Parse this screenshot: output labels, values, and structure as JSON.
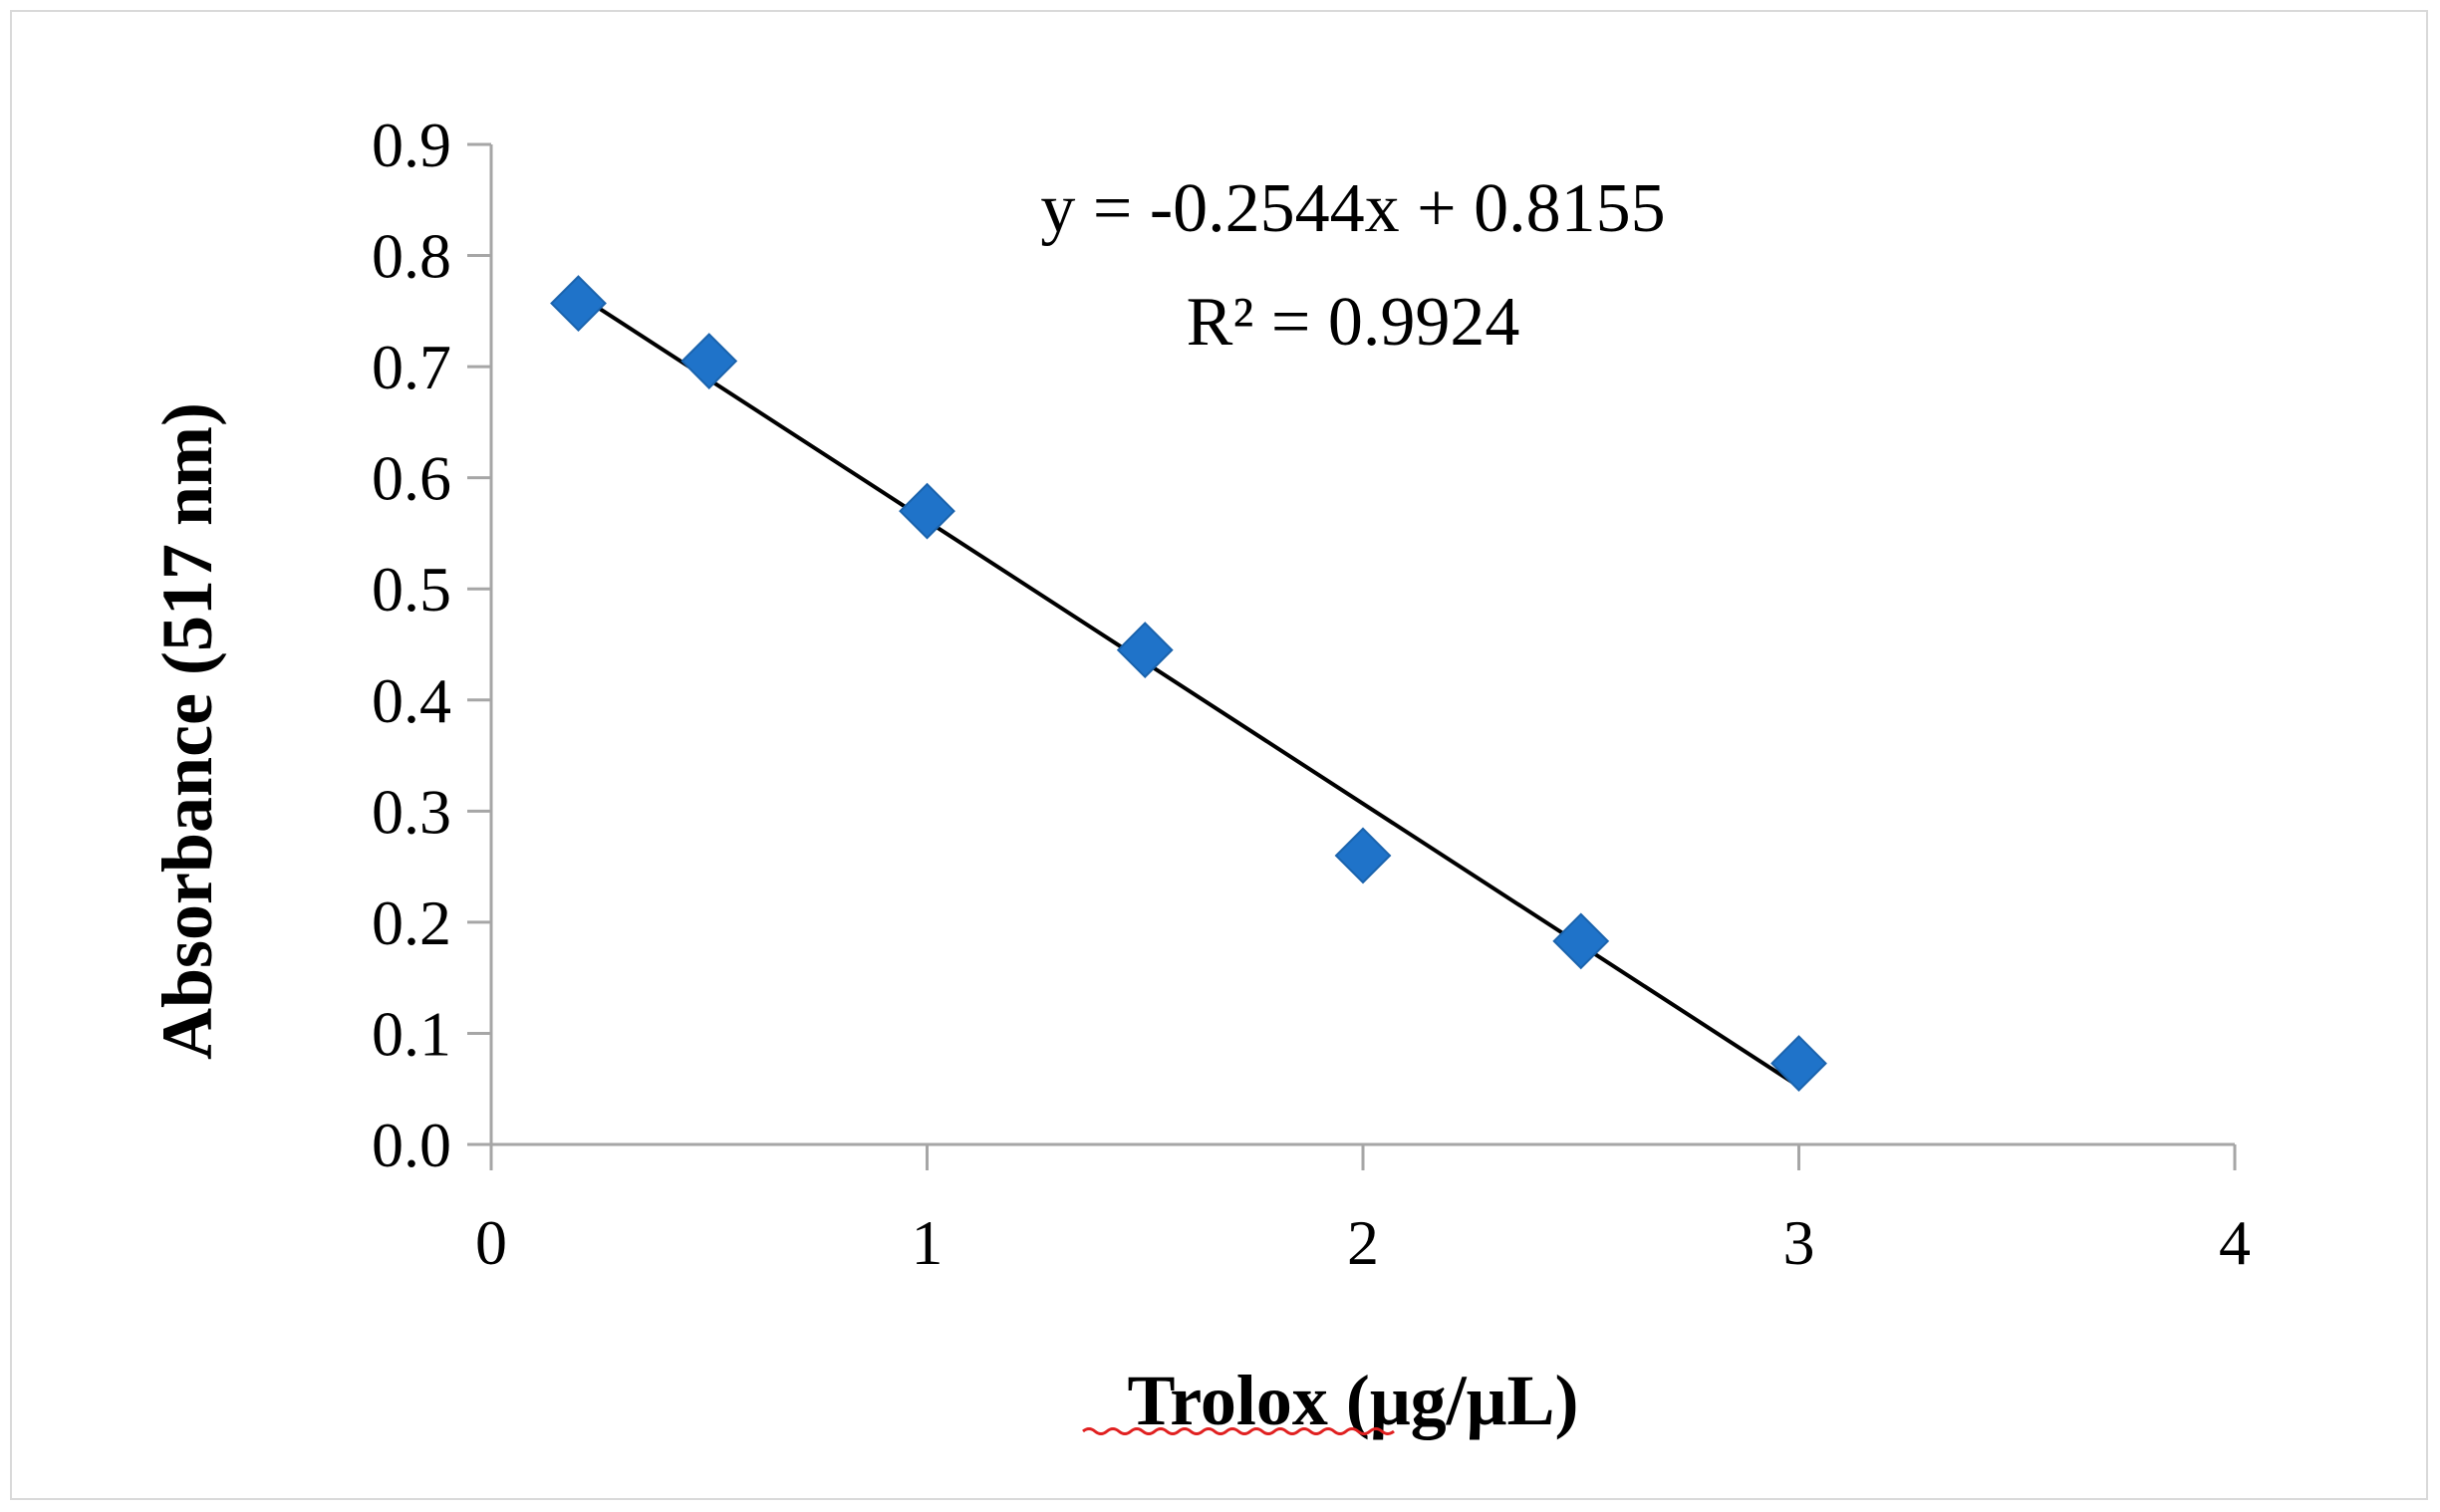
{
  "chart_data": {
    "type": "scatter",
    "title": "",
    "xlabel": "Trolox (μg/μL)",
    "ylabel": "Absorbance (517 nm)",
    "xlim": [
      0,
      4
    ],
    "ylim": [
      0,
      0.9
    ],
    "x_ticks": [
      "0",
      "1",
      "2",
      "3",
      "4"
    ],
    "y_ticks": [
      "0.0",
      "0.1",
      "0.2",
      "0.3",
      "0.4",
      "0.5",
      "0.6",
      "0.7",
      "0.8",
      "0.9"
    ],
    "grid": false,
    "legend": "none",
    "series": [
      {
        "x": [
          0.2,
          0.5,
          1.0,
          1.5,
          2.0,
          2.5,
          3.0
        ],
        "y": [
          0.757,
          0.705,
          0.57,
          0.445,
          0.26,
          0.183,
          0.073
        ],
        "marker": "diamond",
        "color": "#1F73C9"
      }
    ],
    "trendline": {
      "type": "linear",
      "slope": -0.2544,
      "intercept": 0.8155,
      "x_range": [
        0.2,
        3.0
      ],
      "color": "#000000"
    },
    "annotations": {
      "equation": "y = -0.2544x + 0.8155",
      "r_squared": "R² = 0.9924"
    }
  }
}
